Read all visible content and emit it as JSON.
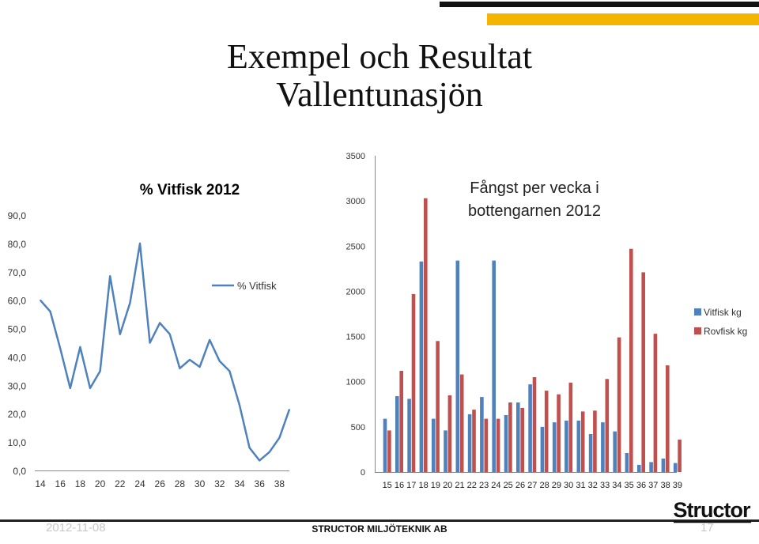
{
  "slide": {
    "title_line1": "Exempel och Resultat",
    "title_line2": "Vallentunasjön",
    "footer_date": "2012-11-08",
    "footer_company": "STRUCTOR MILJÖTEKNIK AB",
    "page_number": "17",
    "logo_text": "Structor",
    "colors": {
      "accent_black": "#111111",
      "accent_gold": "#f5b400"
    }
  },
  "chart_data": [
    {
      "type": "line",
      "title": "% Vitfisk 2012",
      "xlabel": "",
      "ylabel": "",
      "x": [
        14,
        15,
        16,
        17,
        18,
        19,
        20,
        21,
        22,
        23,
        24,
        25,
        26,
        27,
        28,
        29,
        30,
        31,
        32,
        33,
        34,
        35,
        36,
        37,
        38,
        39
      ],
      "series": [
        {
          "name": "% Vitfisk",
          "color": "#4f81bd",
          "values": [
            60,
            56,
            43,
            29,
            43.5,
            29,
            35,
            68.5,
            48,
            59,
            80,
            45,
            52,
            48,
            36,
            39,
            36.5,
            46,
            38.5,
            35,
            23,
            8,
            3.5,
            6.5,
            11.5,
            21.5
          ]
        }
      ],
      "ylim": [
        0,
        90
      ],
      "yticks": [
        "0,0",
        "10,0",
        "20,0",
        "30,0",
        "40,0",
        "50,0",
        "60,0",
        "70,0",
        "80,0",
        "90,0"
      ],
      "xticks": [
        "14",
        "16",
        "18",
        "20",
        "22",
        "24",
        "26",
        "28",
        "30",
        "32",
        "34",
        "36",
        "38"
      ],
      "legend": "inside top-center",
      "grid": false
    },
    {
      "type": "bar",
      "title": "Fångst per vecka i bottengarnen 2012",
      "title_line1": "Fångst per vecka i",
      "title_line2": "bottengarnen 2012",
      "categories": [
        "15",
        "16",
        "17",
        "18",
        "19",
        "20",
        "21",
        "22",
        "23",
        "24",
        "25",
        "26",
        "27",
        "28",
        "29",
        "30",
        "31",
        "32",
        "33",
        "34",
        "35",
        "36",
        "37",
        "38",
        "39"
      ],
      "series": [
        {
          "name": "Vitfisk kg",
          "color": "#4f81bd",
          "values": [
            590,
            840,
            810,
            2330,
            590,
            460,
            2340,
            640,
            830,
            2340,
            630,
            770,
            970,
            500,
            550,
            570,
            570,
            420,
            550,
            450,
            210,
            80,
            110,
            150,
            100
          ]
        },
        {
          "name": "Rovfisk kg",
          "color": "#c0504d",
          "values": [
            460,
            1120,
            1970,
            3030,
            1450,
            850,
            1080,
            690,
            590,
            590,
            770,
            710,
            1050,
            900,
            860,
            990,
            670,
            680,
            1030,
            1490,
            2470,
            2210,
            1530,
            1180,
            360
          ]
        }
      ],
      "ylim": [
        0,
        3500
      ],
      "yticks": [
        "0",
        "500",
        "1000",
        "1500",
        "2000",
        "2500",
        "3000",
        "3500"
      ],
      "legend": "right",
      "grid": false
    }
  ]
}
